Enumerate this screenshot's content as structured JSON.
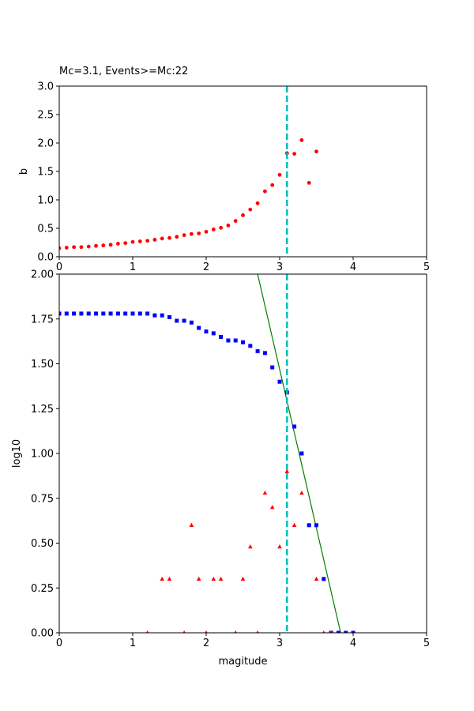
{
  "chart_data": [
    {
      "type": "scatter",
      "title": "Mc=3.1, Events>=Mc:22",
      "xlabel": "",
      "ylabel": "b",
      "xlim": [
        0,
        5
      ],
      "ylim": [
        0,
        3
      ],
      "xticks": [
        "0",
        "1",
        "2",
        "3",
        "4",
        "5"
      ],
      "yticks": [
        "0.0",
        "0.5",
        "1.0",
        "1.5",
        "2.0",
        "2.5",
        "3.0"
      ],
      "grid": false,
      "colors": {
        "points": "#ff0000",
        "mc_line": "#00bfbf"
      },
      "mc_line_x": 3.1,
      "series": [
        {
          "marker": "circle",
          "x": [
            0.0,
            0.1,
            0.2,
            0.3,
            0.4,
            0.5,
            0.6,
            0.7,
            0.8,
            0.9,
            1.0,
            1.1,
            1.2,
            1.3,
            1.4,
            1.5,
            1.6,
            1.7,
            1.8,
            1.9,
            2.0,
            2.1,
            2.2,
            2.3,
            2.4,
            2.5,
            2.6,
            2.7,
            2.8,
            2.9,
            3.0,
            3.1,
            3.2,
            3.3,
            3.4,
            3.5
          ],
          "y": [
            0.15,
            0.16,
            0.17,
            0.17,
            0.18,
            0.19,
            0.2,
            0.21,
            0.23,
            0.24,
            0.26,
            0.27,
            0.28,
            0.3,
            0.32,
            0.33,
            0.35,
            0.38,
            0.4,
            0.41,
            0.44,
            0.48,
            0.51,
            0.55,
            0.63,
            0.73,
            0.83,
            0.94,
            1.15,
            1.26,
            1.44,
            1.82,
            1.81,
            2.05,
            1.3,
            1.85
          ]
        }
      ]
    },
    {
      "type": "scatter",
      "title": "",
      "xlabel": "magitude",
      "ylabel": "log10",
      "xlim": [
        0,
        5
      ],
      "ylim": [
        0,
        2
      ],
      "xticks": [
        "0",
        "1",
        "2",
        "3",
        "4",
        "5"
      ],
      "yticks": [
        "0.00",
        "0.25",
        "0.50",
        "0.75",
        "1.00",
        "1.25",
        "1.50",
        "1.75",
        "2.00"
      ],
      "grid": false,
      "colors": {
        "cumulative": "#0000ff",
        "noncumulative": "#ff0000",
        "fit": "#008000",
        "mc_line": "#00bfbf"
      },
      "mc_line_x": 3.1,
      "fit_line": {
        "x": [
          2.7,
          3.83
        ],
        "y": [
          2.0,
          0.0
        ]
      },
      "series": [
        {
          "marker": "square",
          "x": [
            0.0,
            0.1,
            0.2,
            0.3,
            0.4,
            0.5,
            0.6,
            0.7,
            0.8,
            0.9,
            1.0,
            1.1,
            1.2,
            1.3,
            1.4,
            1.5,
            1.6,
            1.7,
            1.8,
            1.9,
            2.0,
            2.1,
            2.2,
            2.3,
            2.4,
            2.5,
            2.6,
            2.7,
            2.8,
            2.9,
            3.0,
            3.1,
            3.2,
            3.3,
            3.4,
            3.5,
            3.6,
            3.7,
            3.8,
            3.9,
            4.0
          ],
          "y": [
            1.78,
            1.78,
            1.78,
            1.78,
            1.78,
            1.78,
            1.78,
            1.78,
            1.78,
            1.78,
            1.78,
            1.78,
            1.78,
            1.77,
            1.77,
            1.76,
            1.74,
            1.74,
            1.73,
            1.7,
            1.68,
            1.67,
            1.65,
            1.63,
            1.63,
            1.62,
            1.6,
            1.57,
            1.56,
            1.48,
            1.4,
            1.34,
            1.15,
            1.0,
            0.6,
            0.6,
            0.3,
            0.0,
            0.0,
            0.0,
            0.0
          ]
        },
        {
          "marker": "triangle",
          "x": [
            1.2,
            1.4,
            1.5,
            1.7,
            1.8,
            1.9,
            2.0,
            2.1,
            2.2,
            2.4,
            2.5,
            2.6,
            2.7,
            2.8,
            2.9,
            3.0,
            3.1,
            3.2,
            3.3,
            3.5,
            3.6,
            3.7
          ],
          "y": [
            0.0,
            0.3,
            0.3,
            0.0,
            0.6,
            0.3,
            0.0,
            0.3,
            0.3,
            0.0,
            0.3,
            0.48,
            0.0,
            0.78,
            0.7,
            0.48,
            0.9,
            0.6,
            0.78,
            0.3,
            0.0,
            0.0
          ]
        }
      ]
    }
  ]
}
